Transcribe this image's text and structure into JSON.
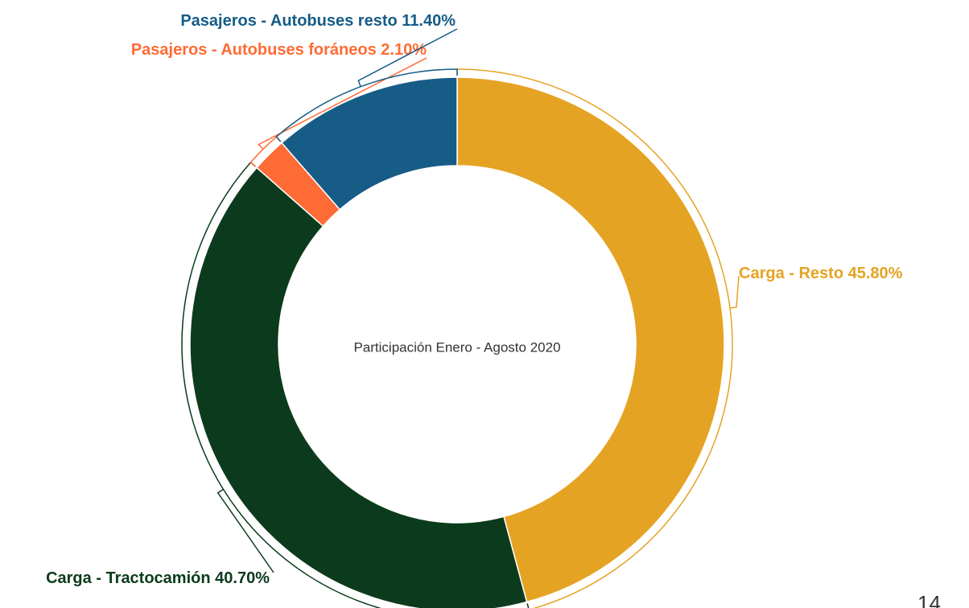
{
  "chart_data": {
    "type": "donut",
    "center_text": "Participación Enero - Agosto 2020",
    "categories": [
      "Carga - Resto",
      "Carga - Tractocamión",
      "Pasajeros - Autobuses foráneos",
      "Pasajeros - Autobuses resto"
    ],
    "values": [
      45.8,
      40.7,
      2.1,
      11.4
    ],
    "value_labels": [
      "45.80%",
      "40.70%",
      "2.10%",
      "11.40%"
    ],
    "colors": [
      "#E5A323",
      "#0B3B1C",
      "#FF6B35",
      "#165C87"
    ]
  },
  "page_number": "14"
}
